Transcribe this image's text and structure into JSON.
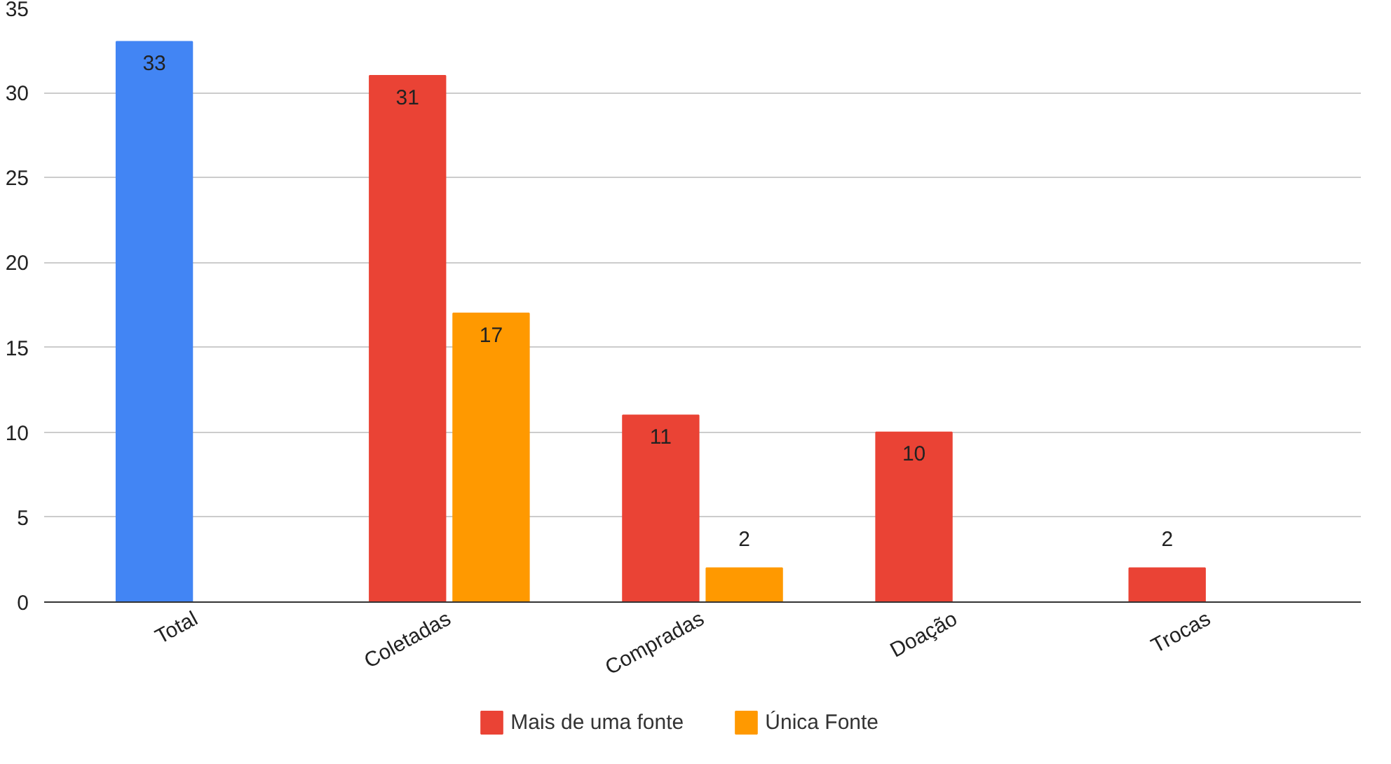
{
  "chart_data": {
    "type": "bar",
    "categories": [
      "Total",
      "Coletadas",
      "Compradas",
      "Doação",
      "Trocas"
    ],
    "series": [
      {
        "name": "Mais de uma fonte",
        "color": "#ea4335",
        "colors": [
          "#4285f4",
          "#ea4335",
          "#ea4335",
          "#ea4335",
          "#ea4335"
        ],
        "values": [
          33,
          31,
          11,
          10,
          2
        ]
      },
      {
        "name": "Única Fonte",
        "color": "#ff9900",
        "values": [
          null,
          17,
          2,
          null,
          null
        ]
      }
    ],
    "ylim": [
      0,
      35
    ],
    "yticks": [
      0,
      5,
      10,
      15,
      20,
      25,
      30,
      35
    ],
    "grid": "y",
    "legend": "bottom",
    "data_labels": true
  }
}
